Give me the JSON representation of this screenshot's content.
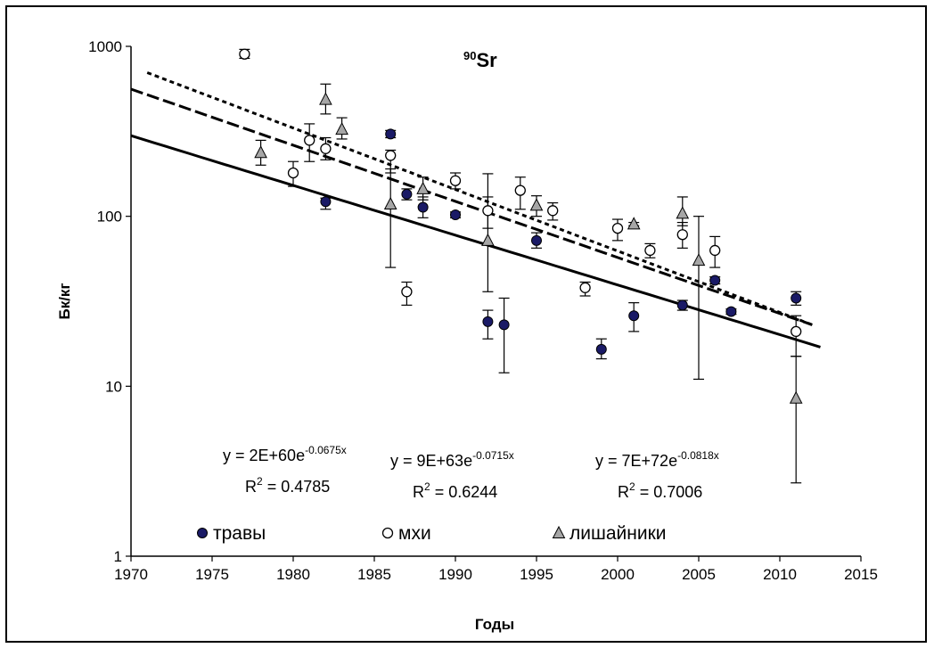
{
  "chart_data": {
    "type": "scatter",
    "title_prefix": "90",
    "title_main": "Sr",
    "xlabel": "Годы",
    "ylabel": "Бк/кг",
    "xlim": [
      1970,
      2015
    ],
    "ylim": [
      1,
      1000
    ],
    "y_scale": "log",
    "grid": false,
    "legend_position": "bottom-left",
    "x_ticks": [
      "1970",
      "1975",
      "1980",
      "1985",
      "1990",
      "1995",
      "2000",
      "2005",
      "2010",
      "2015"
    ],
    "y_ticks": [
      "1",
      "10",
      "100",
      "1000"
    ],
    "series": [
      {
        "name": "травы",
        "marker": "circle-filled",
        "color": "#1a1a66",
        "points": [
          {
            "x": 1982,
            "y": 122,
            "err_low": 110,
            "err_high": 128
          },
          {
            "x": 1986,
            "y": 305,
            "err_low": 290,
            "err_high": 320
          },
          {
            "x": 1987,
            "y": 135,
            "err_low": 125,
            "err_high": 145
          },
          {
            "x": 1988,
            "y": 113,
            "err_low": 98,
            "err_high": 130
          },
          {
            "x": 1990,
            "y": 102,
            "err_low": 98,
            "err_high": 106
          },
          {
            "x": 1992,
            "y": 24,
            "err_low": 19,
            "err_high": 28
          },
          {
            "x": 1993,
            "y": 23,
            "err_low": 12,
            "err_high": 33
          },
          {
            "x": 1995,
            "y": 72,
            "err_low": 65,
            "err_high": 80
          },
          {
            "x": 1999,
            "y": 16.5,
            "err_low": 14.5,
            "err_high": 19
          },
          {
            "x": 2001,
            "y": 26,
            "err_low": 21,
            "err_high": 31
          },
          {
            "x": 2004,
            "y": 30,
            "err_low": 28,
            "err_high": 32
          },
          {
            "x": 2006,
            "y": 42,
            "err_low": 40,
            "err_high": 44
          },
          {
            "x": 2007,
            "y": 27.5,
            "err_low": 26.5,
            "err_high": 28.5
          },
          {
            "x": 2011,
            "y": 33,
            "err_low": 30,
            "err_high": 36
          }
        ]
      },
      {
        "name": "мхи",
        "marker": "circle-open",
        "color": "#000000",
        "points": [
          {
            "x": 1977,
            "y": 900,
            "err_low": 850,
            "err_high": 960
          },
          {
            "x": 1980,
            "y": 180,
            "err_low": 150,
            "err_high": 210
          },
          {
            "x": 1981,
            "y": 280,
            "err_low": 210,
            "err_high": 350
          },
          {
            "x": 1982,
            "y": 250,
            "err_low": 215,
            "err_high": 290
          },
          {
            "x": 1986,
            "y": 228,
            "err_low": 180,
            "err_high": 245
          },
          {
            "x": 1987,
            "y": 36,
            "err_low": 30,
            "err_high": 41
          },
          {
            "x": 1990,
            "y": 162,
            "err_low": 145,
            "err_high": 180
          },
          {
            "x": 1992,
            "y": 108,
            "err_low": 85,
            "err_high": 130
          },
          {
            "x": 1994,
            "y": 142,
            "err_low": 110,
            "err_high": 170
          },
          {
            "x": 1996,
            "y": 108,
            "err_low": 95,
            "err_high": 120
          },
          {
            "x": 1998,
            "y": 38,
            "err_low": 34,
            "err_high": 41
          },
          {
            "x": 2000,
            "y": 85,
            "err_low": 72,
            "err_high": 96
          },
          {
            "x": 2002,
            "y": 63,
            "err_low": 57,
            "err_high": 69
          },
          {
            "x": 2004,
            "y": 78,
            "err_low": 65,
            "err_high": 92
          },
          {
            "x": 2006,
            "y": 63,
            "err_low": 50,
            "err_high": 76
          },
          {
            "x": 2011,
            "y": 21,
            "err_low": 15,
            "err_high": 26
          }
        ]
      },
      {
        "name": "лишайники",
        "marker": "triangle",
        "color": "#a6a6a6",
        "points": [
          {
            "x": 1978,
            "y": 237,
            "err_low": 200,
            "err_high": 280
          },
          {
            "x": 1982,
            "y": 487,
            "err_low": 400,
            "err_high": 600
          },
          {
            "x": 1983,
            "y": 325,
            "err_low": 285,
            "err_high": 380
          },
          {
            "x": 1986,
            "y": 118,
            "err_low": 50,
            "err_high": 190
          },
          {
            "x": 1988,
            "y": 145,
            "err_low": 125,
            "err_high": 170
          },
          {
            "x": 1992,
            "y": 72,
            "err_low": 36,
            "err_high": 178
          },
          {
            "x": 1995,
            "y": 116,
            "err_low": 100,
            "err_high": 132
          },
          {
            "x": 2001,
            "y": 90,
            "err_low": 88,
            "err_high": 92
          },
          {
            "x": 2004,
            "y": 104,
            "err_low": 88,
            "err_high": 130
          },
          {
            "x": 2005,
            "y": 55,
            "err_low": 11,
            "err_high": 100
          },
          {
            "x": 2011,
            "y": 8.5,
            "err_low": 2.7,
            "err_high": 15
          }
        ]
      }
    ],
    "trendlines": [
      {
        "series": "травы",
        "style": "solid",
        "equation_prefix": "y = 2E+60e",
        "equation_exp": "-0.0675x",
        "r2_prefix": "R",
        "r2_sup": "2",
        "r2_value": " = 0.4785",
        "x_range": [
          1970,
          2012.5
        ],
        "y_start": 298,
        "y_end": 17
      },
      {
        "series": "мхи",
        "style": "dashed",
        "equation_prefix": "y = 9E+63e",
        "equation_exp": "-0.0715x",
        "r2_prefix": "R",
        "r2_sup": "2",
        "r2_value": " = 0.6244",
        "x_range": [
          1970,
          2012
        ],
        "y_start": 560,
        "y_end": 23
      },
      {
        "series": "лишайники",
        "style": "dotted",
        "equation_prefix": "y = 7E+72e",
        "equation_exp": "-0.0818x",
        "r2_prefix": "R",
        "r2_sup": "2",
        "r2_value": " = 0.7006",
        "x_range": [
          1971,
          2012
        ],
        "y_start": 700,
        "y_end": 23
      }
    ],
    "legend": [
      {
        "label": "травы",
        "marker": "circle-filled"
      },
      {
        "label": "мхи",
        "marker": "circle-open"
      },
      {
        "label": "лишайники",
        "marker": "triangle"
      }
    ]
  }
}
